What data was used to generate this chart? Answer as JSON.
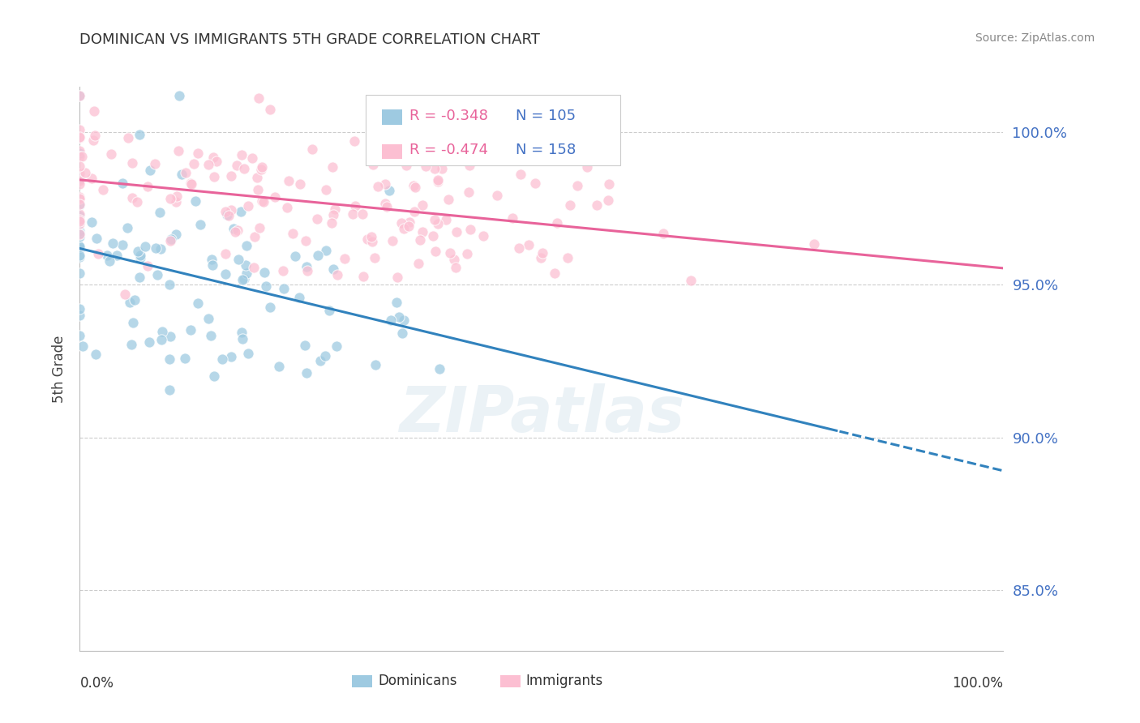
{
  "title": "DOMINICAN VS IMMIGRANTS 5TH GRADE CORRELATION CHART",
  "source": "Source: ZipAtlas.com",
  "ylabel": "5th Grade",
  "watermark": "ZIPatlas",
  "blue_R": -0.348,
  "blue_N": 105,
  "pink_R": -0.474,
  "pink_N": 158,
  "blue_color": "#9ecae1",
  "pink_color": "#fcbfd2",
  "blue_line_color": "#3182bd",
  "pink_line_color": "#e8639a",
  "legend_label_blue": "Dominicans",
  "legend_label_pink": "Immigrants",
  "right_tick_color": "#4472c4",
  "r_text_color": "#e8639a",
  "n_text_color": "#4472c4",
  "yticks": [
    85.0,
    90.0,
    95.0,
    100.0
  ],
  "ylim": [
    83.0,
    101.5
  ],
  "xlim": [
    0.0,
    1.0
  ],
  "title_color": "#333333",
  "source_color": "#888888",
  "grid_color": "#cccccc"
}
